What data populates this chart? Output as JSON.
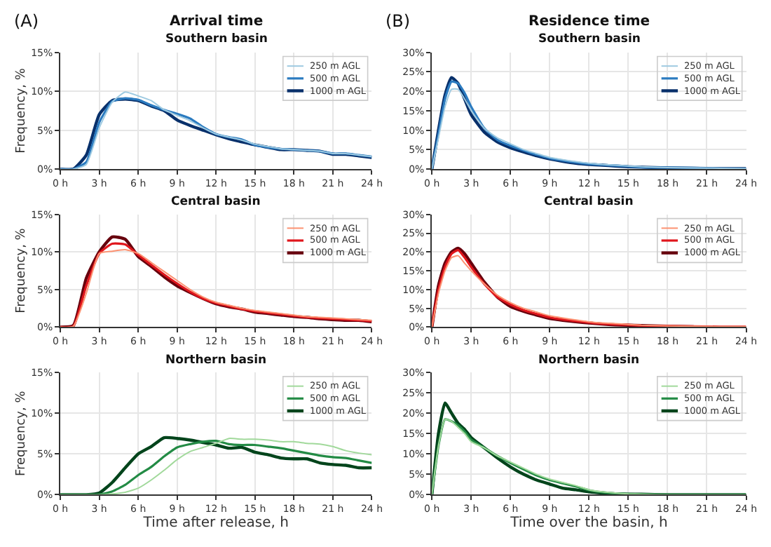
{
  "chart_data": [
    {
      "type": "line",
      "title": "Southern basin",
      "annotations": [
        "(A)",
        "Arrival time"
      ],
      "ylabel": "Frequency, %",
      "legend": "top right",
      "grid": true,
      "x": [
        0,
        1,
        2,
        3,
        4,
        5,
        6,
        7,
        8,
        9,
        10,
        11,
        12,
        13,
        14,
        15,
        16,
        17,
        18,
        19,
        20,
        21,
        22,
        23,
        24
      ],
      "xlim": [
        0,
        24
      ],
      "xticks": [
        {
          "value": 0,
          "label": "0 h"
        },
        {
          "value": 3,
          "label": "3 h"
        },
        {
          "value": 6,
          "label": "6 h"
        },
        {
          "value": 9,
          "label": "9 h"
        },
        {
          "value": 12,
          "label": "12 h"
        },
        {
          "value": 15,
          "label": "15 h"
        },
        {
          "value": 18,
          "label": "18 h"
        },
        {
          "value": 21,
          "label": "21 h"
        },
        {
          "value": 24,
          "label": "24 h"
        }
      ],
      "ylim": [
        0,
        15
      ],
      "yticks": [
        {
          "value": 0,
          "label": "0%"
        },
        {
          "value": 5,
          "label": "5%"
        },
        {
          "value": 10,
          "label": "10%"
        },
        {
          "value": 15,
          "label": "15%"
        }
      ],
      "series": [
        {
          "name": "250 m AGL",
          "color": "#9ecae1",
          "values": [
            0,
            0,
            0.6,
            5.3,
            8.6,
            9.9,
            9.4,
            8.8,
            7.6,
            6.9,
            6.2,
            5.3,
            4.5,
            4.1,
            3.7,
            3.2,
            2.9,
            2.6,
            2.5,
            2.4,
            2.3,
            2.0,
            2.0,
            1.8,
            1.6
          ]
        },
        {
          "name": "500 m AGL",
          "color": "#2b7bc0",
          "values": [
            0,
            0,
            0.9,
            6.0,
            8.7,
            9.1,
            8.9,
            8.2,
            7.6,
            7.1,
            6.5,
            5.4,
            4.5,
            4.1,
            3.8,
            3.1,
            2.8,
            2.6,
            2.5,
            2.4,
            2.3,
            2.0,
            2.0,
            1.8,
            1.6
          ]
        },
        {
          "name": "1000 m AGL",
          "color": "#08306b",
          "values": [
            0,
            0,
            1.8,
            7.0,
            8.8,
            9.0,
            8.8,
            8.1,
            7.5,
            6.3,
            5.6,
            5.0,
            4.4,
            3.9,
            3.5,
            3.1,
            2.8,
            2.5,
            2.5,
            2.4,
            2.3,
            1.9,
            1.9,
            1.7,
            1.5
          ]
        }
      ]
    },
    {
      "type": "line",
      "title": "Central basin",
      "ylabel": "Frequency, %",
      "legend": "top right",
      "grid": true,
      "x": [
        0,
        1,
        2,
        3,
        4,
        5,
        6,
        7,
        8,
        9,
        10,
        11,
        12,
        13,
        14,
        15,
        16,
        17,
        18,
        19,
        20,
        21,
        22,
        23,
        24
      ],
      "xlim": [
        0,
        24
      ],
      "xticks": [
        {
          "value": 0,
          "label": "0 h"
        },
        {
          "value": 3,
          "label": "3 h"
        },
        {
          "value": 6,
          "label": "6 h"
        },
        {
          "value": 9,
          "label": "9 h"
        },
        {
          "value": 12,
          "label": "12 h"
        },
        {
          "value": 15,
          "label": "15 h"
        },
        {
          "value": 18,
          "label": "18 h"
        },
        {
          "value": 21,
          "label": "21 h"
        },
        {
          "value": 24,
          "label": "24 h"
        }
      ],
      "ylim": [
        0,
        15
      ],
      "yticks": [
        {
          "value": 0,
          "label": "0%"
        },
        {
          "value": 5,
          "label": "5%"
        },
        {
          "value": 10,
          "label": "10%"
        },
        {
          "value": 15,
          "label": "15%"
        }
      ],
      "series": [
        {
          "name": "250 m AGL",
          "color": "#fc9272",
          "values": [
            0,
            0.1,
            4.5,
            9.8,
            10.1,
            10.3,
            9.8,
            8.6,
            7.4,
            6.2,
            5,
            4,
            3.3,
            2.9,
            2.5,
            2.2,
            2,
            1.8,
            1.6,
            1.4,
            1.3,
            1.2,
            1.1,
            1.0,
            0.9
          ]
        },
        {
          "name": "500 m AGL",
          "color": "#e0161c",
          "values": [
            0,
            0.1,
            5.5,
            9.8,
            11.1,
            11,
            9.6,
            8.3,
            7,
            5.8,
            4.7,
            3.8,
            3.2,
            2.8,
            2.4,
            2.1,
            1.9,
            1.7,
            1.5,
            1.3,
            1.2,
            1.1,
            1.0,
            0.9,
            0.8
          ]
        },
        {
          "name": "1000 m AGL",
          "color": "#67000d",
          "values": [
            0,
            0.2,
            6.5,
            10,
            12,
            11.7,
            9.4,
            8.1,
            6.7,
            5.5,
            4.6,
            3.8,
            3.1,
            2.7,
            2.4,
            2,
            1.8,
            1.6,
            1.4,
            1.3,
            1.1,
            1.0,
            0.9,
            0.9,
            0.7
          ]
        }
      ]
    },
    {
      "type": "line",
      "title": "Northern basin",
      "xlabel": "Time after release, h",
      "ylabel": "Frequency, %",
      "legend": "top right",
      "grid": true,
      "x": [
        0,
        1,
        2,
        3,
        4,
        5,
        6,
        7,
        8,
        9,
        10,
        11,
        12,
        13,
        14,
        15,
        16,
        17,
        18,
        19,
        20,
        21,
        22,
        23,
        24
      ],
      "xlim": [
        0,
        24
      ],
      "xticks": [
        {
          "value": 0,
          "label": "0 h"
        },
        {
          "value": 3,
          "label": "3 h"
        },
        {
          "value": 6,
          "label": "6 h"
        },
        {
          "value": 9,
          "label": "9 h"
        },
        {
          "value": 12,
          "label": "12 h"
        },
        {
          "value": 15,
          "label": "15 h"
        },
        {
          "value": 18,
          "label": "18 h"
        },
        {
          "value": 21,
          "label": "21 h"
        },
        {
          "value": 24,
          "label": "24 h"
        }
      ],
      "ylim": [
        0,
        15
      ],
      "yticks": [
        {
          "value": 0,
          "label": "0%"
        },
        {
          "value": 5,
          "label": "5%"
        },
        {
          "value": 10,
          "label": "10%"
        },
        {
          "value": 15,
          "label": "15%"
        }
      ],
      "series": [
        {
          "name": "250 m AGL",
          "color": "#a1d99b",
          "values": [
            0,
            0,
            0,
            0,
            0.1,
            0.3,
            0.8,
            1.8,
            3,
            4.3,
            5.3,
            5.8,
            6.3,
            6.9,
            6.8,
            6.8,
            6.7,
            6.5,
            6.5,
            6.3,
            6.2,
            5.9,
            5.4,
            5.1,
            4.9
          ]
        },
        {
          "name": "500 m AGL",
          "color": "#238b45",
          "values": [
            0,
            0,
            0,
            0,
            0.4,
            1.2,
            2.4,
            3.4,
            4.7,
            5.8,
            6.2,
            6.5,
            6.6,
            6.2,
            6.1,
            6.1,
            5.9,
            5.7,
            5.4,
            5.1,
            4.8,
            4.6,
            4.5,
            4.2,
            3.9
          ]
        },
        {
          "name": "1000 m AGL",
          "color": "#00441b",
          "values": [
            0,
            0,
            0,
            0.2,
            1.5,
            3.3,
            5.0,
            5.9,
            7.0,
            6.9,
            6.7,
            6.4,
            6.1,
            5.7,
            5.8,
            5.2,
            4.9,
            4.5,
            4.4,
            4.4,
            3.9,
            3.7,
            3.6,
            3.3,
            3.3
          ]
        }
      ]
    },
    {
      "type": "line",
      "title": "Southern basin",
      "annotations": [
        "(B)",
        "Residence time"
      ],
      "legend": "top right",
      "grid": true,
      "x": [
        0,
        0.5,
        1,
        1.5,
        2,
        2.5,
        3,
        4,
        5,
        6,
        7,
        8,
        9,
        10,
        11,
        12,
        13,
        14,
        15,
        16,
        18,
        20,
        22,
        24
      ],
      "xlim": [
        0,
        24
      ],
      "xticks": [
        {
          "value": 0,
          "label": "0 h"
        },
        {
          "value": 3,
          "label": "3 h"
        },
        {
          "value": 6,
          "label": "6 h"
        },
        {
          "value": 9,
          "label": "9 h"
        },
        {
          "value": 12,
          "label": "12 h"
        },
        {
          "value": 15,
          "label": "15 h"
        },
        {
          "value": 18,
          "label": "18 h"
        },
        {
          "value": 21,
          "label": "21 h"
        },
        {
          "value": 24,
          "label": "24 h"
        }
      ],
      "ylim": [
        0,
        30
      ],
      "yticks": [
        {
          "value": 0,
          "label": "0%"
        },
        {
          "value": 5,
          "label": "5%"
        },
        {
          "value": 10,
          "label": "10%"
        },
        {
          "value": 15,
          "label": "15%"
        },
        {
          "value": 20,
          "label": "20%"
        },
        {
          "value": 25,
          "label": "25%"
        },
        {
          "value": 30,
          "label": "30%"
        }
      ],
      "series": [
        {
          "name": "250 m AGL",
          "color": "#9ecae1",
          "values": [
            0,
            8,
            16,
            20.5,
            20.5,
            18,
            15,
            10.5,
            8,
            6.5,
            5,
            4,
            3,
            2.4,
            1.9,
            1.5,
            1.2,
            1,
            0.8,
            0.6,
            0.4,
            0.3,
            0.2,
            0.1
          ]
        },
        {
          "name": "500 m AGL",
          "color": "#2b7bc0",
          "values": [
            0,
            9,
            18,
            22.5,
            22,
            19.5,
            16,
            10.5,
            7.5,
            6,
            4.8,
            3.7,
            2.8,
            2.2,
            1.7,
            1.3,
            1.1,
            0.9,
            0.7,
            0.5,
            0.4,
            0.3,
            0.2,
            0.1
          ]
        },
        {
          "name": "1000 m AGL",
          "color": "#08306b",
          "values": [
            0,
            10,
            19,
            23.5,
            22,
            18,
            14,
            9.5,
            7,
            5.5,
            4.4,
            3.4,
            2.6,
            2,
            1.5,
            1.2,
            1,
            0.8,
            0.6,
            0.5,
            0.3,
            0.2,
            0.1,
            0.1
          ]
        }
      ]
    },
    {
      "type": "line",
      "title": "Central basin",
      "legend": "top right",
      "grid": true,
      "x": [
        0,
        0.5,
        1,
        1.5,
        2,
        2.5,
        3,
        4,
        5,
        6,
        7,
        8,
        9,
        10,
        11,
        12,
        13,
        14,
        15,
        16,
        18,
        20,
        22,
        24
      ],
      "xlim": [
        0,
        24
      ],
      "xticks": [
        {
          "value": 0,
          "label": "0 h"
        },
        {
          "value": 3,
          "label": "3 h"
        },
        {
          "value": 6,
          "label": "6 h"
        },
        {
          "value": 9,
          "label": "9 h"
        },
        {
          "value": 12,
          "label": "12 h"
        },
        {
          "value": 15,
          "label": "15 h"
        },
        {
          "value": 18,
          "label": "18 h"
        },
        {
          "value": 21,
          "label": "21 h"
        },
        {
          "value": 24,
          "label": "24 h"
        }
      ],
      "ylim": [
        0,
        30
      ],
      "yticks": [
        {
          "value": 0,
          "label": "0%"
        },
        {
          "value": 5,
          "label": "5%"
        },
        {
          "value": 10,
          "label": "10%"
        },
        {
          "value": 15,
          "label": "15%"
        },
        {
          "value": 20,
          "label": "20%"
        },
        {
          "value": 25,
          "label": "25%"
        },
        {
          "value": 30,
          "label": "30%"
        }
      ],
      "series": [
        {
          "name": "250 m AGL",
          "color": "#fc9272",
          "values": [
            0,
            9,
            15,
            18.5,
            19,
            17,
            15,
            11.5,
            8.5,
            6.5,
            5,
            4,
            3,
            2.4,
            1.9,
            1.4,
            1.1,
            0.9,
            0.7,
            0.5,
            0.3,
            0.2,
            0.1,
            0.1
          ]
        },
        {
          "name": "500 m AGL",
          "color": "#e0161c",
          "values": [
            0,
            10,
            16,
            19.5,
            20.5,
            18.5,
            16,
            11.5,
            8,
            6,
            4.5,
            3.5,
            2.6,
            2,
            1.6,
            1.2,
            0.9,
            0.7,
            0.6,
            0.4,
            0.3,
            0.2,
            0.1,
            0.1
          ]
        },
        {
          "name": "1000 m AGL",
          "color": "#67000d",
          "values": [
            0,
            11,
            17,
            20,
            21,
            19.5,
            17,
            12,
            8,
            5.5,
            4.2,
            3.2,
            2.3,
            1.8,
            1.4,
            1.1,
            0.8,
            0.6,
            0.5,
            0.4,
            0.2,
            0.1,
            null,
            null
          ]
        }
      ]
    },
    {
      "type": "line",
      "title": "Northern basin",
      "xlabel": "Time over the basin, h",
      "legend": "top right",
      "grid": true,
      "x": [
        0,
        0.5,
        1,
        1.5,
        2,
        2.5,
        3,
        4,
        5,
        6,
        7,
        8,
        9,
        10,
        11,
        12,
        13,
        14,
        15,
        16,
        18,
        20,
        22,
        24
      ],
      "xlim": [
        0,
        24
      ],
      "xticks": [
        {
          "value": 0,
          "label": "0 h"
        },
        {
          "value": 3,
          "label": "3 h"
        },
        {
          "value": 6,
          "label": "6 h"
        },
        {
          "value": 9,
          "label": "9 h"
        },
        {
          "value": 12,
          "label": "12 h"
        },
        {
          "value": 15,
          "label": "15 h"
        },
        {
          "value": 18,
          "label": "18 h"
        },
        {
          "value": 21,
          "label": "21 h"
        },
        {
          "value": 24,
          "label": "24 h"
        }
      ],
      "ylim": [
        0,
        30
      ],
      "yticks": [
        {
          "value": 0,
          "label": "0%"
        },
        {
          "value": 5,
          "label": "5%"
        },
        {
          "value": 10,
          "label": "10%"
        },
        {
          "value": 15,
          "label": "15%"
        },
        {
          "value": 20,
          "label": "20%"
        },
        {
          "value": 25,
          "label": "25%"
        },
        {
          "value": 30,
          "label": "30%"
        }
      ],
      "series": [
        {
          "name": "250 m AGL",
          "color": "#a1d99b",
          "values": [
            0,
            12,
            18.5,
            18,
            16.5,
            15,
            13,
            11.5,
            9.5,
            8,
            6.5,
            5,
            3.8,
            3,
            2.2,
            1.2,
            0.7,
            0.4,
            0.2,
            0.1,
            0,
            0,
            0,
            0
          ]
        },
        {
          "name": "500 m AGL",
          "color": "#238b45",
          "values": [
            0,
            12,
            18.5,
            18,
            17,
            15.5,
            13.5,
            11.5,
            9.5,
            7.8,
            6.2,
            4.7,
            3.6,
            2.8,
            2,
            1.1,
            0.6,
            0.3,
            0.2,
            0.1,
            0,
            0,
            0,
            0
          ]
        },
        {
          "name": "1000 m AGL",
          "color": "#00441b",
          "values": [
            0,
            15,
            22.5,
            20,
            17.5,
            16,
            14,
            11.5,
            9,
            6.8,
            5,
            3.6,
            2.6,
            1.6,
            1.2,
            0.7,
            0.4,
            0.2,
            0.1,
            0.1,
            0,
            0,
            0,
            0
          ]
        }
      ]
    }
  ]
}
